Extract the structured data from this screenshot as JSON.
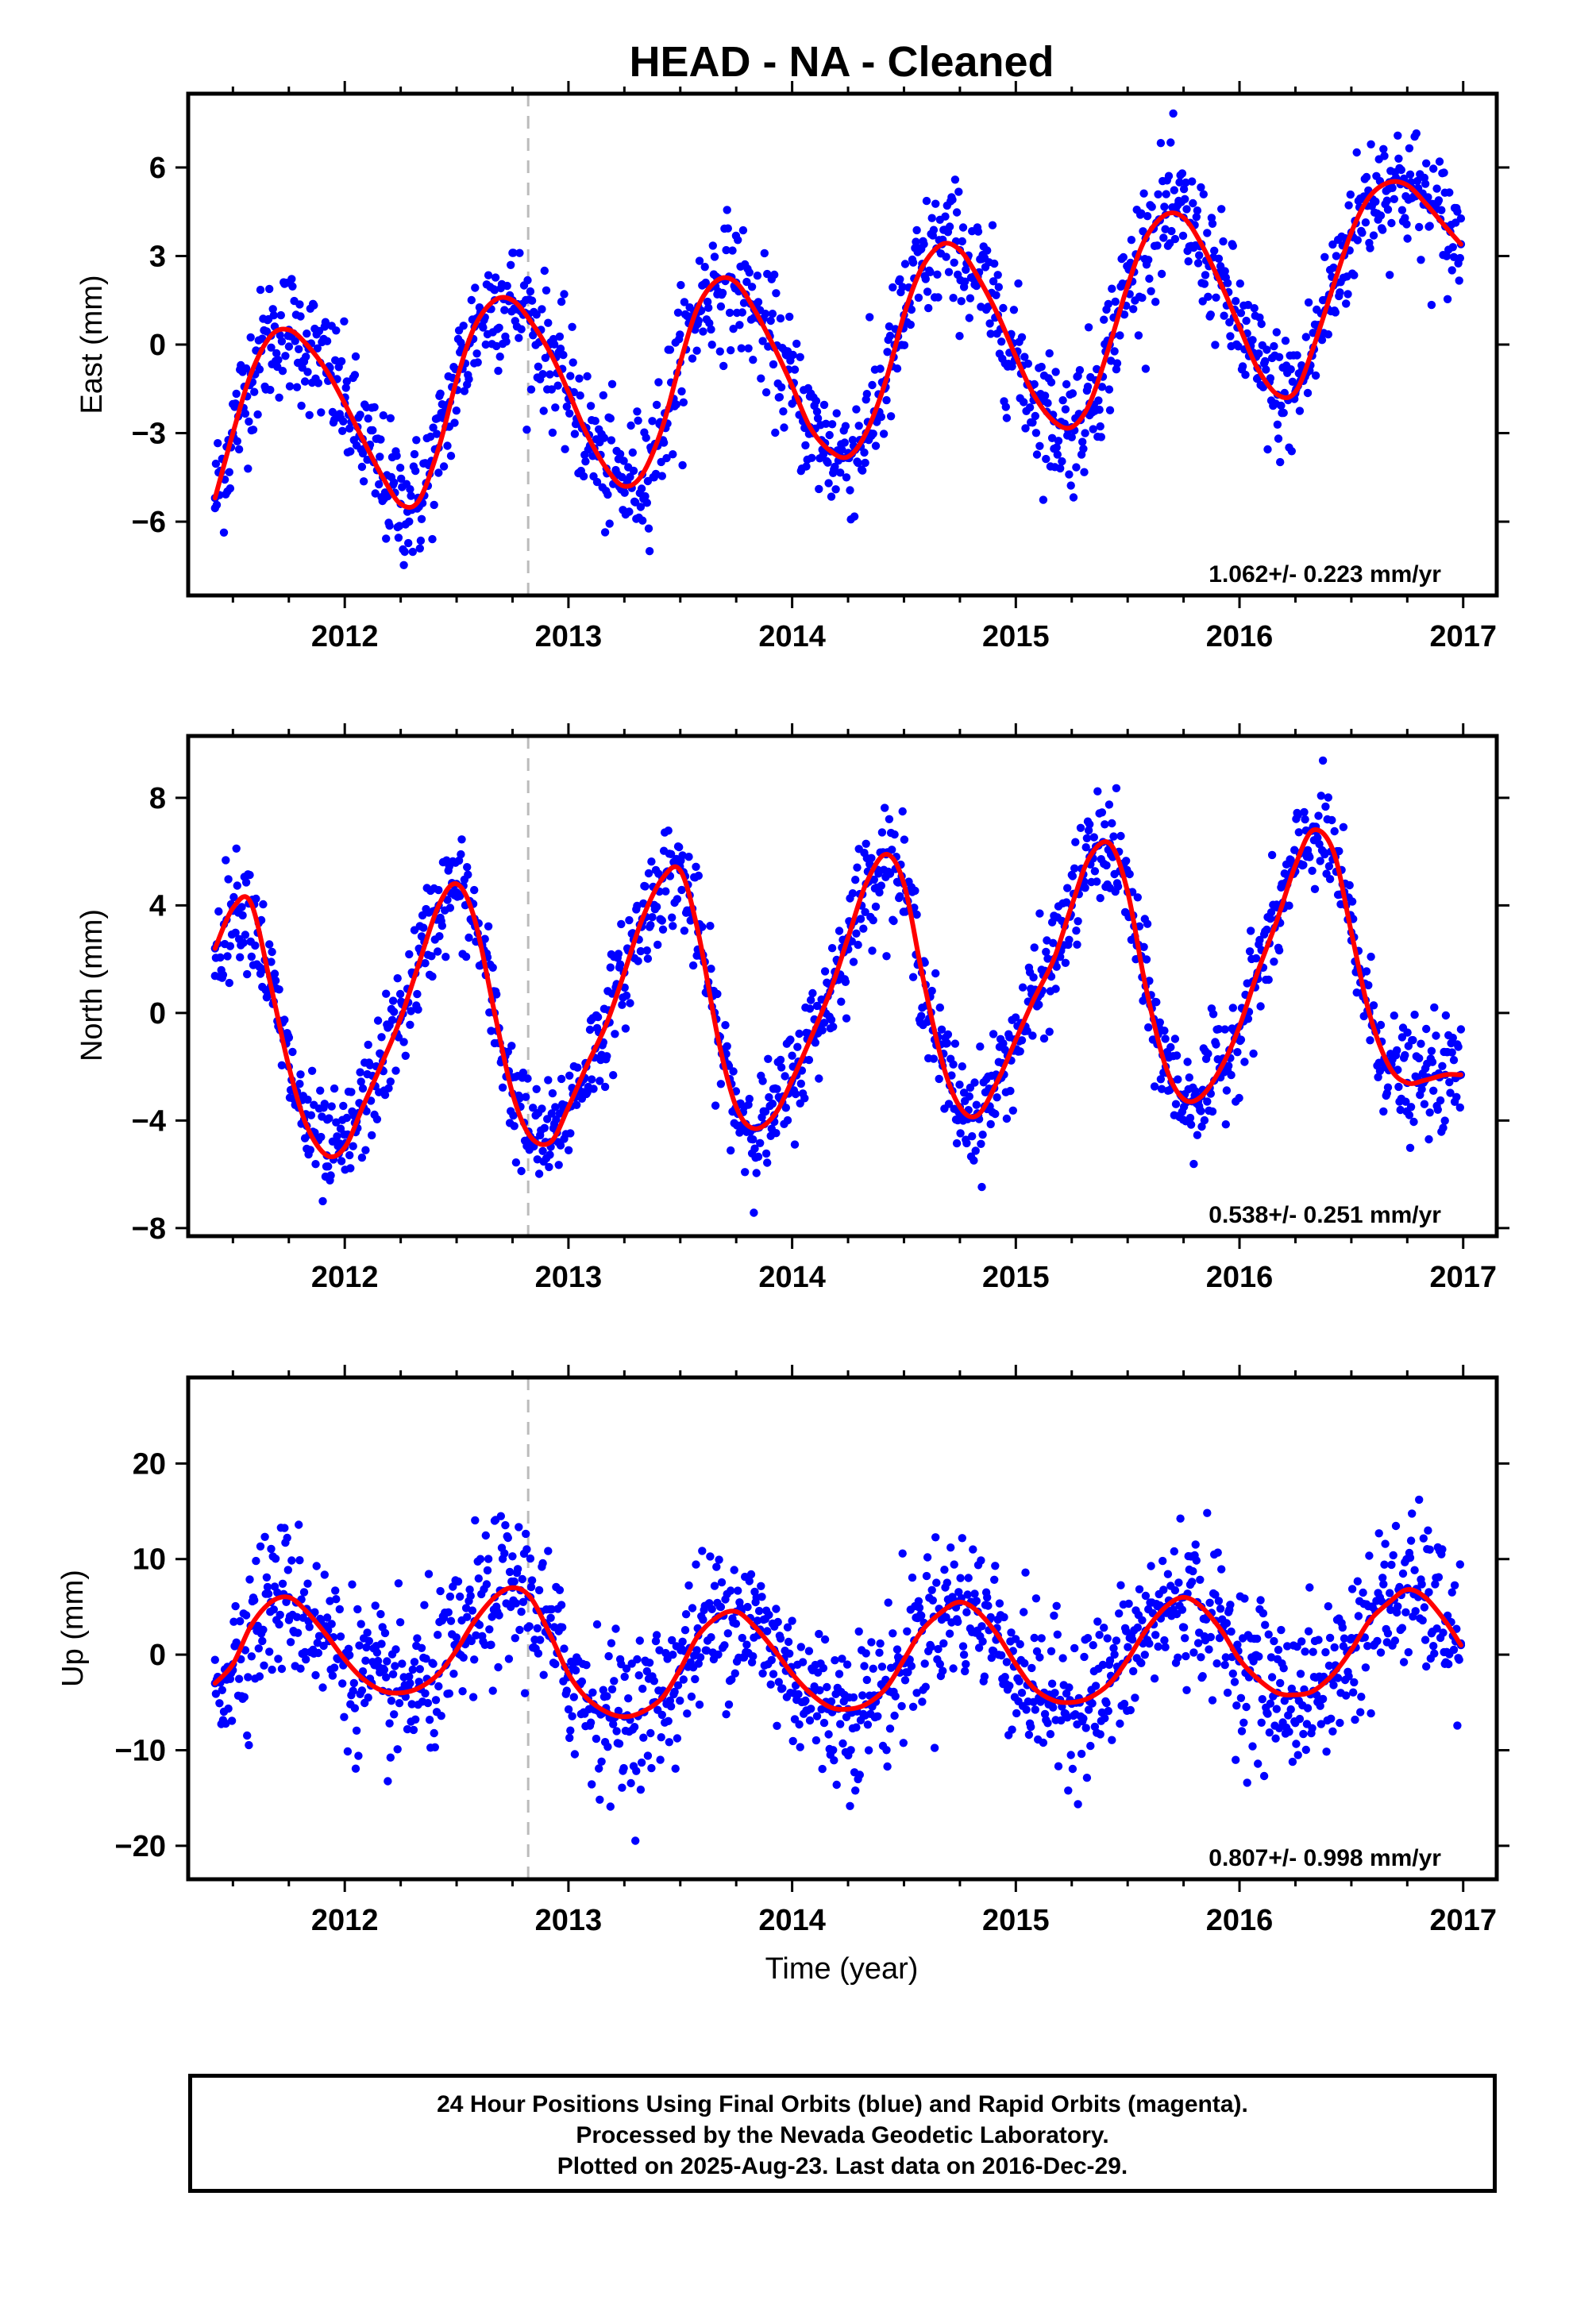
{
  "figure": {
    "title": "HEAD  - NA - Cleaned",
    "xlabel": "Time (year)",
    "caption": [
      "24 Hour Positions Using Final Orbits (blue) and Rapid Orbits (magenta).",
      "Processed by the Nevada Geodetic Laboratory.",
      "Plotted on 2025-Aug-23. Last data on 2016-Dec-29."
    ]
  },
  "colors": {
    "final_orbits": "#0000ff",
    "model_fit": "#ff0000",
    "event_marker": "#bbbbbb",
    "frame": "#000000"
  },
  "chart_data": [
    {
      "type": "scatter",
      "component": "east",
      "ylabel": "East (mm)",
      "xlim": [
        2011.3,
        2017.15
      ],
      "ylim": [
        -8.5,
        8.5
      ],
      "xticks": [
        2012,
        2013,
        2014,
        2015,
        2016,
        2017
      ],
      "yticks": [
        -6,
        -3,
        0,
        3,
        6
      ],
      "grid": false,
      "rate_label": "1.062+/- 0.223 mm/yr",
      "event_line_x": 2012.82,
      "data_span": [
        2011.42,
        2016.99
      ],
      "series": [
        {
          "name": "24 Hour Positions (Final Orbits)",
          "style": "points",
          "x": [
            2011.42,
            2011.5,
            2011.58,
            2011.67,
            2011.75,
            2011.83,
            2011.92,
            2012.0,
            2012.08,
            2012.17,
            2012.25,
            2012.33,
            2012.42,
            2012.5,
            2012.58,
            2012.67,
            2012.75,
            2012.83,
            2012.92,
            2013.0,
            2013.08,
            2013.17,
            2013.25,
            2013.33,
            2013.42,
            2013.5,
            2013.58,
            2013.67,
            2013.75,
            2013.83,
            2013.92,
            2014.0,
            2014.08,
            2014.17,
            2014.25,
            2014.33,
            2014.42,
            2014.5,
            2014.58,
            2014.67,
            2014.75,
            2014.83,
            2014.92,
            2015.0,
            2015.08,
            2015.17,
            2015.25,
            2015.33,
            2015.42,
            2015.5,
            2015.58,
            2015.67,
            2015.75,
            2015.83,
            2015.92,
            2016.0,
            2016.08,
            2016.17,
            2016.25,
            2016.33,
            2016.42,
            2016.5,
            2016.58,
            2016.67,
            2016.75,
            2016.83,
            2016.92,
            2016.99
          ],
          "y": [
            -5.2,
            -3.0,
            -1.0,
            0.3,
            0.5,
            0.0,
            -0.9,
            -2.0,
            -3.2,
            -4.5,
            -5.4,
            -5.3,
            -3.5,
            -1.2,
            0.6,
            1.5,
            1.5,
            0.8,
            -0.3,
            -1.6,
            -3.0,
            -4.2,
            -4.8,
            -4.4,
            -2.8,
            -0.6,
            1.3,
            2.2,
            2.1,
            1.2,
            -0.1,
            -1.4,
            -2.8,
            -3.6,
            -3.8,
            -3.0,
            -1.2,
            1.0,
            2.6,
            3.4,
            3.2,
            2.3,
            1.0,
            -0.4,
            -1.7,
            -2.6,
            -2.8,
            -2.0,
            0.0,
            2.0,
            3.6,
            4.4,
            4.3,
            3.4,
            2.0,
            0.6,
            -0.8,
            -1.7,
            -1.6,
            -0.1,
            2.0,
            3.8,
            5.0,
            5.5,
            5.4,
            4.8,
            4.0,
            3.4
          ],
          "scatter_mm": 1.1
        },
        {
          "name": "model",
          "style": "line",
          "x": [
            2011.42,
            2011.5,
            2011.58,
            2011.67,
            2011.75,
            2011.83,
            2011.92,
            2012.0,
            2012.08,
            2012.17,
            2012.25,
            2012.33,
            2012.42,
            2012.5,
            2012.58,
            2012.67,
            2012.75,
            2012.83,
            2012.92,
            2013.0,
            2013.08,
            2013.17,
            2013.25,
            2013.33,
            2013.42,
            2013.5,
            2013.58,
            2013.67,
            2013.75,
            2013.83,
            2013.92,
            2014.0,
            2014.08,
            2014.17,
            2014.25,
            2014.33,
            2014.42,
            2014.5,
            2014.58,
            2014.67,
            2014.75,
            2014.83,
            2014.92,
            2015.0,
            2015.08,
            2015.17,
            2015.25,
            2015.33,
            2015.42,
            2015.5,
            2015.58,
            2015.67,
            2015.75,
            2015.83,
            2015.92,
            2016.0,
            2016.08,
            2016.17,
            2016.25,
            2016.33,
            2016.42,
            2016.5,
            2016.58,
            2016.67,
            2016.75,
            2016.83,
            2016.92,
            2016.99
          ],
          "y": [
            -5.2,
            -3.0,
            -1.0,
            0.3,
            0.5,
            0.0,
            -0.9,
            -2.0,
            -3.2,
            -4.5,
            -5.4,
            -5.3,
            -3.5,
            -1.2,
            0.6,
            1.5,
            1.5,
            0.8,
            -0.3,
            -1.6,
            -3.0,
            -4.2,
            -4.8,
            -4.4,
            -2.8,
            -0.6,
            1.3,
            2.2,
            2.1,
            1.2,
            -0.1,
            -1.4,
            -2.8,
            -3.6,
            -3.8,
            -3.0,
            -1.2,
            1.0,
            2.6,
            3.4,
            3.2,
            2.3,
            1.0,
            -0.4,
            -1.7,
            -2.6,
            -2.8,
            -2.0,
            0.0,
            2.0,
            3.6,
            4.4,
            4.3,
            3.4,
            2.0,
            0.6,
            -0.8,
            -1.7,
            -1.6,
            -0.1,
            2.0,
            3.8,
            5.0,
            5.5,
            5.4,
            4.8,
            4.0,
            3.4
          ]
        }
      ]
    },
    {
      "type": "scatter",
      "component": "north",
      "ylabel": "North (mm)",
      "xlim": [
        2011.3,
        2017.15
      ],
      "ylim": [
        -8.3,
        10.3
      ],
      "xticks": [
        2012,
        2013,
        2014,
        2015,
        2016,
        2017
      ],
      "yticks": [
        -8,
        -4,
        0,
        4,
        8
      ],
      "grid": false,
      "rate_label": "0.538+/- 0.251 mm/yr",
      "event_line_x": 2012.82,
      "data_span": [
        2011.42,
        2016.99
      ],
      "series": [
        {
          "name": "24 Hour Positions (Final Orbits)",
          "style": "points",
          "x": [
            2011.42,
            2011.5,
            2011.58,
            2011.67,
            2011.75,
            2011.83,
            2011.92,
            2012.0,
            2012.08,
            2012.17,
            2012.25,
            2012.33,
            2012.42,
            2012.5,
            2012.58,
            2012.67,
            2012.75,
            2012.83,
            2012.92,
            2013.0,
            2013.08,
            2013.17,
            2013.25,
            2013.33,
            2013.42,
            2013.5,
            2013.58,
            2013.67,
            2013.75,
            2013.83,
            2013.92,
            2014.0,
            2014.08,
            2014.17,
            2014.25,
            2014.33,
            2014.42,
            2014.5,
            2014.58,
            2014.67,
            2014.75,
            2014.83,
            2014.92,
            2015.0,
            2015.08,
            2015.17,
            2015.25,
            2015.33,
            2015.42,
            2015.5,
            2015.58,
            2015.67,
            2015.75,
            2015.83,
            2015.92,
            2016.0,
            2016.08,
            2016.17,
            2016.25,
            2016.33,
            2016.42,
            2016.5,
            2016.58,
            2016.67,
            2016.75,
            2016.83,
            2016.92,
            2016.99
          ],
          "y": [
            2.4,
            3.9,
            4.1,
            1.0,
            -2.0,
            -4.2,
            -5.3,
            -5.0,
            -3.5,
            -1.8,
            -0.2,
            1.8,
            4.0,
            4.8,
            3.5,
            0.0,
            -3.0,
            -4.6,
            -4.8,
            -3.5,
            -2.0,
            -0.4,
            1.5,
            3.5,
            5.0,
            5.3,
            3.0,
            -1.0,
            -3.5,
            -4.3,
            -3.8,
            -2.5,
            -1.0,
            0.8,
            2.8,
            4.8,
            5.9,
            4.8,
            1.5,
            -1.8,
            -3.5,
            -3.8,
            -2.5,
            -1.0,
            0.5,
            2.0,
            4.0,
            5.8,
            6.3,
            4.5,
            1.0,
            -2.0,
            -3.2,
            -3.1,
            -2.0,
            -0.5,
            1.5,
            3.5,
            5.5,
            6.8,
            6.0,
            3.0,
            0.0,
            -2.0,
            -2.6,
            -2.5,
            -2.3,
            -2.3
          ],
          "scatter_mm": 1.0
        },
        {
          "name": "model",
          "style": "line",
          "x": [
            2011.42,
            2011.5,
            2011.58,
            2011.67,
            2011.75,
            2011.83,
            2011.92,
            2012.0,
            2012.08,
            2012.17,
            2012.25,
            2012.33,
            2012.42,
            2012.5,
            2012.58,
            2012.67,
            2012.75,
            2012.83,
            2012.92,
            2013.0,
            2013.08,
            2013.17,
            2013.25,
            2013.33,
            2013.42,
            2013.5,
            2013.58,
            2013.67,
            2013.75,
            2013.83,
            2013.92,
            2014.0,
            2014.08,
            2014.17,
            2014.25,
            2014.33,
            2014.42,
            2014.5,
            2014.58,
            2014.67,
            2014.75,
            2014.83,
            2014.92,
            2015.0,
            2015.08,
            2015.17,
            2015.25,
            2015.33,
            2015.42,
            2015.5,
            2015.58,
            2015.67,
            2015.75,
            2015.83,
            2015.92,
            2016.0,
            2016.08,
            2016.17,
            2016.25,
            2016.33,
            2016.42,
            2016.5,
            2016.58,
            2016.67,
            2016.75,
            2016.83,
            2016.92,
            2016.99
          ],
          "y": [
            2.4,
            3.9,
            4.1,
            1.0,
            -2.0,
            -4.2,
            -5.3,
            -5.0,
            -3.5,
            -1.8,
            -0.2,
            1.8,
            4.0,
            4.8,
            3.5,
            0.0,
            -3.0,
            -4.6,
            -4.8,
            -3.5,
            -2.0,
            -0.4,
            1.5,
            3.5,
            5.0,
            5.3,
            3.0,
            -1.0,
            -3.5,
            -4.3,
            -3.8,
            -2.5,
            -1.0,
            0.8,
            2.8,
            4.8,
            5.9,
            4.8,
            1.5,
            -1.8,
            -3.5,
            -3.8,
            -2.5,
            -1.0,
            0.5,
            2.0,
            4.0,
            5.8,
            6.3,
            4.5,
            1.0,
            -2.0,
            -3.2,
            -3.1,
            -2.0,
            -0.5,
            1.5,
            3.5,
            5.5,
            6.8,
            6.0,
            3.0,
            0.0,
            -2.0,
            -2.6,
            -2.5,
            -2.3,
            -2.3
          ]
        }
      ]
    },
    {
      "type": "scatter",
      "component": "up",
      "ylabel": "Up (mm)",
      "xlim": [
        2011.3,
        2017.15
      ],
      "ylim": [
        -23.5,
        29
      ],
      "xticks": [
        2012,
        2013,
        2014,
        2015,
        2016,
        2017
      ],
      "yticks": [
        -20,
        -10,
        0,
        10,
        20
      ],
      "grid": false,
      "rate_label": "0.807+/- 0.998 mm/yr",
      "event_line_x": 2012.82,
      "data_span": [
        2011.42,
        2016.99
      ],
      "series": [
        {
          "name": "24 Hour Positions (Final Orbits)",
          "style": "points",
          "x": [
            2011.42,
            2011.5,
            2011.58,
            2011.67,
            2011.75,
            2011.83,
            2011.92,
            2012.0,
            2012.08,
            2012.17,
            2012.25,
            2012.33,
            2012.42,
            2012.5,
            2012.58,
            2012.67,
            2012.75,
            2012.83,
            2012.92,
            2013.0,
            2013.08,
            2013.17,
            2013.25,
            2013.33,
            2013.42,
            2013.5,
            2013.58,
            2013.67,
            2013.75,
            2013.83,
            2013.92,
            2014.0,
            2014.08,
            2014.17,
            2014.25,
            2014.33,
            2014.42,
            2014.5,
            2014.58,
            2014.67,
            2014.75,
            2014.83,
            2014.92,
            2015.0,
            2015.08,
            2015.17,
            2015.25,
            2015.33,
            2015.42,
            2015.5,
            2015.58,
            2015.67,
            2015.75,
            2015.83,
            2015.92,
            2016.0,
            2016.08,
            2016.17,
            2016.25,
            2016.33,
            2016.42,
            2016.5,
            2016.58,
            2016.67,
            2016.75,
            2016.83,
            2016.92,
            2016.99
          ],
          "y": [
            -3.0,
            -1.0,
            3.0,
            5.5,
            6.0,
            4.5,
            2.0,
            -0.5,
            -2.5,
            -3.8,
            -4.0,
            -3.5,
            -2.0,
            0.5,
            3.5,
            6.0,
            7.0,
            6.0,
            2.0,
            -2.0,
            -4.5,
            -6.0,
            -6.5,
            -6.0,
            -4.5,
            -1.5,
            2.0,
            4.0,
            4.5,
            3.0,
            0.5,
            -2.0,
            -4.0,
            -5.5,
            -5.7,
            -5.2,
            -3.5,
            -0.5,
            2.5,
            4.5,
            5.5,
            4.5,
            2.0,
            -1.0,
            -3.5,
            -4.8,
            -5.0,
            -4.5,
            -3.0,
            -0.5,
            2.5,
            5.0,
            6.0,
            5.0,
            2.5,
            -0.5,
            -2.5,
            -4.0,
            -4.2,
            -3.8,
            -2.0,
            0.5,
            3.5,
            5.5,
            6.8,
            6.0,
            3.5,
            1.0
          ],
          "scatter_mm": 4.0
        },
        {
          "name": "model",
          "style": "line",
          "x": [
            2011.42,
            2011.5,
            2011.58,
            2011.67,
            2011.75,
            2011.83,
            2011.92,
            2012.0,
            2012.08,
            2012.17,
            2012.25,
            2012.33,
            2012.42,
            2012.5,
            2012.58,
            2012.67,
            2012.75,
            2012.83,
            2012.92,
            2013.0,
            2013.08,
            2013.17,
            2013.25,
            2013.33,
            2013.42,
            2013.5,
            2013.58,
            2013.67,
            2013.75,
            2013.83,
            2013.92,
            2014.0,
            2014.08,
            2014.17,
            2014.25,
            2014.33,
            2014.42,
            2014.5,
            2014.58,
            2014.67,
            2014.75,
            2014.83,
            2014.92,
            2015.0,
            2015.08,
            2015.17,
            2015.25,
            2015.33,
            2015.42,
            2015.5,
            2015.58,
            2015.67,
            2015.75,
            2015.83,
            2015.92,
            2016.0,
            2016.08,
            2016.17,
            2016.25,
            2016.33,
            2016.42,
            2016.5,
            2016.58,
            2016.67,
            2016.75,
            2016.83,
            2016.92,
            2016.99
          ],
          "y": [
            -3.0,
            -1.0,
            3.0,
            5.5,
            6.0,
            4.5,
            2.0,
            -0.5,
            -2.5,
            -3.8,
            -4.0,
            -3.5,
            -2.0,
            0.5,
            3.5,
            6.0,
            7.0,
            6.0,
            2.0,
            -2.0,
            -4.5,
            -6.0,
            -6.5,
            -6.0,
            -4.5,
            -1.5,
            2.0,
            4.0,
            4.5,
            3.0,
            0.5,
            -2.0,
            -4.0,
            -5.5,
            -5.7,
            -5.2,
            -3.5,
            -0.5,
            2.5,
            4.5,
            5.5,
            4.5,
            2.0,
            -1.0,
            -3.5,
            -4.8,
            -5.0,
            -4.5,
            -3.0,
            -0.5,
            2.5,
            5.0,
            6.0,
            5.0,
            2.5,
            -0.5,
            -2.5,
            -4.0,
            -4.2,
            -3.8,
            -2.0,
            0.5,
            3.5,
            5.5,
            6.8,
            6.0,
            3.5,
            1.0
          ]
        }
      ]
    }
  ]
}
